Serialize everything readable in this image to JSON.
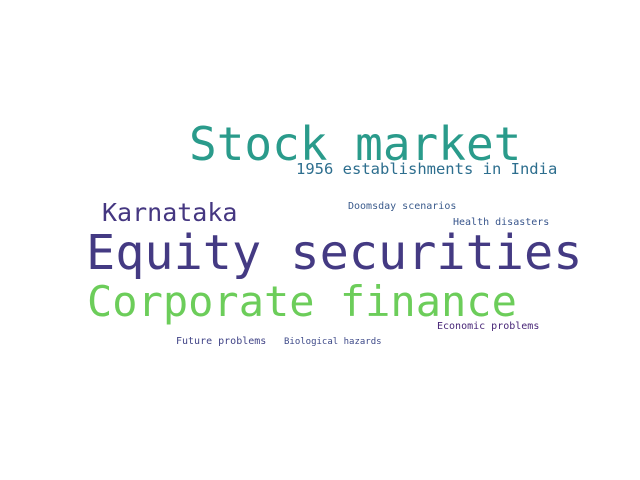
{
  "words": [
    {
      "id": "stock-market",
      "text": "Stock market",
      "color": "#2a9b8b"
    },
    {
      "id": "1956-establishments-in-india",
      "text": "1956 establishments in India",
      "color": "#2d6e8e"
    },
    {
      "id": "karnataka",
      "text": "Karnataka",
      "color": "#453781"
    },
    {
      "id": "doomsday-scenarios",
      "text": "Doomsday scenarios",
      "color": "#3b5b8c"
    },
    {
      "id": "health-disasters",
      "text": "Health disasters",
      "color": "#39568c"
    },
    {
      "id": "equity-securities",
      "text": "Equity securities",
      "color": "#443a83"
    },
    {
      "id": "corporate-finance",
      "text": "Corporate finance",
      "color": "#6ccd5a"
    },
    {
      "id": "economic-problems",
      "text": "Economic problems",
      "color": "#482677"
    },
    {
      "id": "future-problems",
      "text": "Future problems",
      "color": "#414487"
    },
    {
      "id": "biological-hazards",
      "text": "Biological hazards",
      "color": "#3e4a89"
    }
  ]
}
